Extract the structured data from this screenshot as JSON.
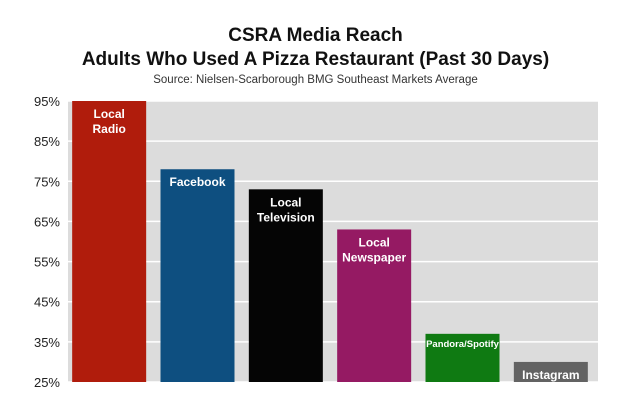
{
  "chart_data": {
    "type": "bar",
    "title": "CSRA Media Reach",
    "title_line2": "Adults Who Used A Pizza Restaurant (Past 30 Days)",
    "subtitle": "Source: Nielsen-Scarborough BMG Southeast Markets Average",
    "xlabel": "",
    "ylabel": "",
    "ylim": [
      25,
      95
    ],
    "yticks": [
      "25%",
      "35%",
      "45%",
      "55%",
      "65%",
      "75%",
      "85%",
      "95%"
    ],
    "ytick_values": [
      25,
      35,
      45,
      55,
      65,
      75,
      85,
      95
    ],
    "grid": true,
    "legend": "none",
    "categories": [
      "Local Radio",
      "Facebook",
      "Local Television",
      "Local Newspaper",
      "Pandora/Spotify",
      "Instagram"
    ],
    "label_lines": [
      [
        "Local",
        "Radio"
      ],
      [
        "Facebook"
      ],
      [
        "Local",
        "Television"
      ],
      [
        "Local",
        "Newspaper"
      ],
      [
        "Pandora/Spotify"
      ],
      [
        "Instagram"
      ]
    ],
    "values": [
      95,
      78,
      73,
      63,
      37,
      30
    ],
    "colors": [
      "#b01c0c",
      "#0e4f80",
      "#050505",
      "#951a63",
      "#0f7a12",
      "#636363"
    ],
    "plot_background": "#dcdcdc",
    "grid_color": "#ffffff"
  }
}
